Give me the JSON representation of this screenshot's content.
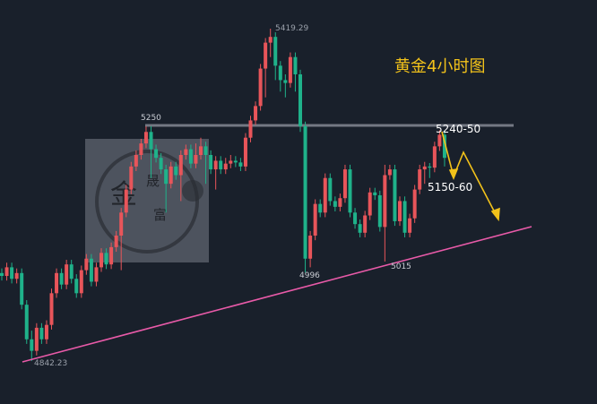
{
  "chart_data": {
    "type": "candlestick",
    "title": "黄金4小时图",
    "colors": {
      "up": "#e8555a",
      "down": "#1fb28a",
      "background": "#19202b",
      "resistance_line": "#8a8f99",
      "trendline": "#e85aa8",
      "forecast_arrow": "#f2c21a",
      "title": "#f2c21a"
    },
    "ohlc": [
      [
        4995,
        5003,
        4982,
        4990
      ],
      [
        4990,
        5013,
        4982,
        5005
      ],
      [
        5005,
        5013,
        4977,
        4985
      ],
      [
        4985,
        5003,
        4977,
        4995
      ],
      [
        4995,
        5003,
        4932,
        4940
      ],
      [
        4940,
        4948,
        4872,
        4880
      ],
      [
        4880,
        4895,
        4842.23,
        4860
      ],
      [
        4860,
        4908,
        4852,
        4900
      ],
      [
        4900,
        4908,
        4872,
        4880
      ],
      [
        4880,
        4913,
        4872,
        4905
      ],
      [
        4905,
        4968,
        4897,
        4960
      ],
      [
        4960,
        5003,
        4952,
        4995
      ],
      [
        4995,
        5003,
        4967,
        4975
      ],
      [
        4975,
        5018,
        4967,
        5010
      ],
      [
        5010,
        5018,
        4977,
        4985
      ],
      [
        4985,
        4993,
        4952,
        4960
      ],
      [
        4960,
        5008,
        4952,
        5000
      ],
      [
        5000,
        5028,
        4992,
        5020
      ],
      [
        5020,
        5028,
        4972,
        4980
      ],
      [
        4980,
        5013,
        4972,
        5005
      ],
      [
        5005,
        5038,
        4997,
        5030
      ],
      [
        5030,
        5038,
        5002,
        5010
      ],
      [
        5010,
        5048,
        5002,
        5040
      ],
      [
        5040,
        5068,
        5032,
        5060
      ],
      [
        5060,
        5108,
        5000,
        5100
      ],
      [
        5100,
        5148,
        5092,
        5140
      ],
      [
        5140,
        5188,
        5132,
        5180
      ],
      [
        5180,
        5208,
        5172,
        5200
      ],
      [
        5200,
        5228,
        5192,
        5220
      ],
      [
        5220,
        5250,
        5212,
        5240
      ],
      [
        5240,
        5250,
        5160,
        5210
      ],
      [
        5210,
        5218,
        5187,
        5195
      ],
      [
        5195,
        5203,
        5167,
        5175
      ],
      [
        5175,
        5183,
        5100,
        5150
      ],
      [
        5150,
        5188,
        5142,
        5180
      ],
      [
        5180,
        5188,
        5157,
        5165
      ],
      [
        5165,
        5208,
        5120,
        5200
      ],
      [
        5200,
        5218,
        5192,
        5210
      ],
      [
        5210,
        5218,
        5177,
        5185
      ],
      [
        5185,
        5220,
        5177,
        5200
      ],
      [
        5200,
        5230,
        5192,
        5215
      ],
      [
        5215,
        5223,
        5150,
        5200
      ],
      [
        5200,
        5208,
        5167,
        5175
      ],
      [
        5175,
        5198,
        5140,
        5190
      ],
      [
        5190,
        5198,
        5167,
        5175
      ],
      [
        5175,
        5195,
        5167,
        5185
      ],
      [
        5185,
        5200,
        5177,
        5190
      ],
      [
        5190,
        5198,
        5179,
        5187
      ],
      [
        5187,
        5195,
        5172,
        5180
      ],
      [
        5180,
        5238,
        5172,
        5230
      ],
      [
        5230,
        5268,
        5222,
        5260
      ],
      [
        5260,
        5293,
        5252,
        5285
      ],
      [
        5285,
        5358,
        5277,
        5350
      ],
      [
        5350,
        5403,
        5300,
        5395
      ],
      [
        5395,
        5419.29,
        5370,
        5405
      ],
      [
        5405,
        5413,
        5330,
        5355
      ],
      [
        5355,
        5363,
        5310,
        5330
      ],
      [
        5330,
        5340,
        5300,
        5325
      ],
      [
        5325,
        5378,
        5317,
        5370
      ],
      [
        5370,
        5378,
        5310,
        5340
      ],
      [
        5340,
        5348,
        5240,
        5250
      ],
      [
        5250,
        5258,
        4996,
        5020
      ],
      [
        5020,
        5068,
        5005,
        5060
      ],
      [
        5060,
        5123,
        5052,
        5115
      ],
      [
        5115,
        5123,
        5092,
        5100
      ],
      [
        5100,
        5168,
        5092,
        5160
      ],
      [
        5160,
        5168,
        5112,
        5120
      ],
      [
        5120,
        5128,
        5102,
        5110
      ],
      [
        5110,
        5133,
        5102,
        5125
      ],
      [
        5125,
        5183,
        5117,
        5175
      ],
      [
        5175,
        5183,
        5092,
        5100
      ],
      [
        5100,
        5108,
        5072,
        5080
      ],
      [
        5080,
        5088,
        5057,
        5065
      ],
      [
        5065,
        5103,
        5057,
        5095
      ],
      [
        5095,
        5143,
        5087,
        5135
      ],
      [
        5135,
        5143,
        5122,
        5130
      ],
      [
        5130,
        5138,
        5067,
        5075
      ],
      [
        5075,
        5183,
        5015,
        5165
      ],
      [
        5165,
        5183,
        5157,
        5175
      ],
      [
        5175,
        5183,
        5077,
        5085
      ],
      [
        5085,
        5128,
        5077,
        5120
      ],
      [
        5120,
        5128,
        5057,
        5065
      ],
      [
        5065,
        5098,
        5057,
        5090
      ],
      [
        5090,
        5148,
        5082,
        5140
      ],
      [
        5140,
        5183,
        5132,
        5175
      ],
      [
        5175,
        5188,
        5150,
        5180
      ],
      [
        5180,
        5186,
        5160,
        5178
      ],
      [
        5178,
        5223,
        5170,
        5215
      ],
      [
        5215,
        5243,
        5207,
        5235
      ],
      [
        5235,
        5243,
        5180,
        5195
      ]
    ],
    "price_labels": {
      "high": "5419.29",
      "low": "4842.23",
      "resistance": "5250",
      "low_2": "4996",
      "low_3": "5015"
    },
    "annotations": {
      "upper_zone": "5240-50",
      "lower_zone": "5150-60"
    },
    "resistance_price": 5250,
    "logo_text": "金晟富"
  }
}
